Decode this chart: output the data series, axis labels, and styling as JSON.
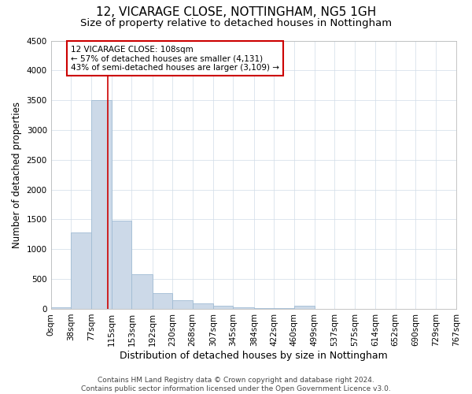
{
  "title1": "12, VICARAGE CLOSE, NOTTINGHAM, NG5 1GH",
  "title2": "Size of property relative to detached houses in Nottingham",
  "xlabel": "Distribution of detached houses by size in Nottingham",
  "ylabel": "Number of detached properties",
  "property_size": 108,
  "property_line_label": "12 VICARAGE CLOSE: 108sqm",
  "annotation_line1": "← 57% of detached houses are smaller (4,131)",
  "annotation_line2": "43% of semi-detached houses are larger (3,109) →",
  "footer1": "Contains HM Land Registry data © Crown copyright and database right 2024.",
  "footer2": "Contains public sector information licensed under the Open Government Licence v3.0.",
  "bar_edges": [
    0,
    38,
    77,
    115,
    153,
    192,
    230,
    268,
    307,
    345,
    384,
    422,
    460,
    499,
    537,
    575,
    614,
    652,
    690,
    729,
    767
  ],
  "bar_heights": [
    30,
    1280,
    3500,
    1480,
    580,
    260,
    145,
    90,
    55,
    30,
    15,
    10,
    50,
    0,
    0,
    0,
    0,
    0,
    0,
    0
  ],
  "bar_color": "#ccd9e8",
  "bar_edgecolor": "#a0bcd4",
  "line_color": "#cc0000",
  "annotation_box_edgecolor": "#cc0000",
  "grid_color": "#d0dce8",
  "ylim": [
    0,
    4500
  ],
  "yticks": [
    0,
    500,
    1000,
    1500,
    2000,
    2500,
    3000,
    3500,
    4000,
    4500
  ],
  "title1_fontsize": 11,
  "title2_fontsize": 9.5,
  "xlabel_fontsize": 9,
  "ylabel_fontsize": 8.5,
  "tick_fontsize": 7.5,
  "annotation_fontsize": 7.5,
  "footer_fontsize": 6.5
}
